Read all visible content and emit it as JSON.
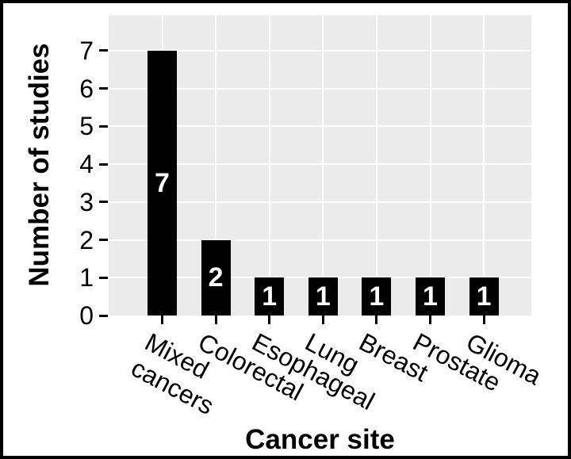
{
  "figure": {
    "background_color": "#ffffff",
    "frame_color": "#000000",
    "panel_background_color": "#EBEBEB",
    "gridline_color": "#ffffff",
    "bar_color": "#000000",
    "bar_label_color": "#ffffff",
    "text_color": "#000000"
  },
  "chart_data": {
    "type": "bar",
    "title": "",
    "xlabel": "Cancer site",
    "ylabel": "Number of studies",
    "categories": [
      "Mixed\ncancers",
      "Colorectal",
      "Esophageal",
      "Lung",
      "Breast",
      "Prostate",
      "Glioma"
    ],
    "values": [
      7,
      2,
      1,
      1,
      1,
      1,
      1
    ],
    "bar_value_labels": [
      "7",
      "2",
      "1",
      "1",
      "1",
      "1",
      "1"
    ],
    "yticks": [
      0,
      1,
      2,
      3,
      4,
      5,
      6,
      7
    ],
    "ylim": [
      0,
      7.94
    ],
    "x_tick_label_angle_deg": 28,
    "grid": "white major gridlines on gray panel: horizontal at integer counts, vertical at category centers",
    "legend_position": "none",
    "bar_value_label_position": "centered inside bar, white bold"
  }
}
